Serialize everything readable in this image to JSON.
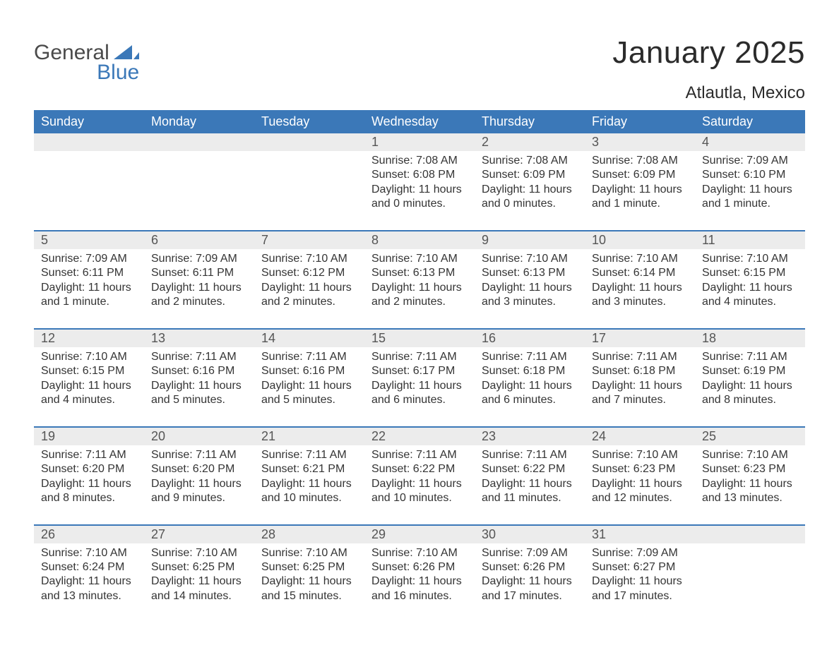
{
  "brand": {
    "word1": "General",
    "word2": "Blue",
    "word1_color": "#4a4a4a",
    "word2_color": "#3b78b8",
    "sail_color": "#3b78b8"
  },
  "title": "January 2025",
  "location": "Atlautla, Mexico",
  "colors": {
    "header_bg": "#3b78b8",
    "header_text": "#ffffff",
    "band_bg": "#ececec",
    "text": "#343434",
    "daynum_text": "#555555",
    "border": "#3b78b8",
    "page_bg": "#ffffff"
  },
  "typography": {
    "title_fontsize_pt": 33,
    "location_fontsize_pt": 18,
    "dayhead_fontsize_pt": 13.5,
    "body_fontsize_pt": 12
  },
  "day_headers": [
    "Sunday",
    "Monday",
    "Tuesday",
    "Wednesday",
    "Thursday",
    "Friday",
    "Saturday"
  ],
  "weeks": [
    [
      null,
      null,
      null,
      {
        "n": "1",
        "sunrise": "Sunrise: 7:08 AM",
        "sunset": "Sunset: 6:08 PM",
        "daylight": "Daylight: 11 hours and 0 minutes."
      },
      {
        "n": "2",
        "sunrise": "Sunrise: 7:08 AM",
        "sunset": "Sunset: 6:09 PM",
        "daylight": "Daylight: 11 hours and 0 minutes."
      },
      {
        "n": "3",
        "sunrise": "Sunrise: 7:08 AM",
        "sunset": "Sunset: 6:09 PM",
        "daylight": "Daylight: 11 hours and 1 minute."
      },
      {
        "n": "4",
        "sunrise": "Sunrise: 7:09 AM",
        "sunset": "Sunset: 6:10 PM",
        "daylight": "Daylight: 11 hours and 1 minute."
      }
    ],
    [
      {
        "n": "5",
        "sunrise": "Sunrise: 7:09 AM",
        "sunset": "Sunset: 6:11 PM",
        "daylight": "Daylight: 11 hours and 1 minute."
      },
      {
        "n": "6",
        "sunrise": "Sunrise: 7:09 AM",
        "sunset": "Sunset: 6:11 PM",
        "daylight": "Daylight: 11 hours and 2 minutes."
      },
      {
        "n": "7",
        "sunrise": "Sunrise: 7:10 AM",
        "sunset": "Sunset: 6:12 PM",
        "daylight": "Daylight: 11 hours and 2 minutes."
      },
      {
        "n": "8",
        "sunrise": "Sunrise: 7:10 AM",
        "sunset": "Sunset: 6:13 PM",
        "daylight": "Daylight: 11 hours and 2 minutes."
      },
      {
        "n": "9",
        "sunrise": "Sunrise: 7:10 AM",
        "sunset": "Sunset: 6:13 PM",
        "daylight": "Daylight: 11 hours and 3 minutes."
      },
      {
        "n": "10",
        "sunrise": "Sunrise: 7:10 AM",
        "sunset": "Sunset: 6:14 PM",
        "daylight": "Daylight: 11 hours and 3 minutes."
      },
      {
        "n": "11",
        "sunrise": "Sunrise: 7:10 AM",
        "sunset": "Sunset: 6:15 PM",
        "daylight": "Daylight: 11 hours and 4 minutes."
      }
    ],
    [
      {
        "n": "12",
        "sunrise": "Sunrise: 7:10 AM",
        "sunset": "Sunset: 6:15 PM",
        "daylight": "Daylight: 11 hours and 4 minutes."
      },
      {
        "n": "13",
        "sunrise": "Sunrise: 7:11 AM",
        "sunset": "Sunset: 6:16 PM",
        "daylight": "Daylight: 11 hours and 5 minutes."
      },
      {
        "n": "14",
        "sunrise": "Sunrise: 7:11 AM",
        "sunset": "Sunset: 6:16 PM",
        "daylight": "Daylight: 11 hours and 5 minutes."
      },
      {
        "n": "15",
        "sunrise": "Sunrise: 7:11 AM",
        "sunset": "Sunset: 6:17 PM",
        "daylight": "Daylight: 11 hours and 6 minutes."
      },
      {
        "n": "16",
        "sunrise": "Sunrise: 7:11 AM",
        "sunset": "Sunset: 6:18 PM",
        "daylight": "Daylight: 11 hours and 6 minutes."
      },
      {
        "n": "17",
        "sunrise": "Sunrise: 7:11 AM",
        "sunset": "Sunset: 6:18 PM",
        "daylight": "Daylight: 11 hours and 7 minutes."
      },
      {
        "n": "18",
        "sunrise": "Sunrise: 7:11 AM",
        "sunset": "Sunset: 6:19 PM",
        "daylight": "Daylight: 11 hours and 8 minutes."
      }
    ],
    [
      {
        "n": "19",
        "sunrise": "Sunrise: 7:11 AM",
        "sunset": "Sunset: 6:20 PM",
        "daylight": "Daylight: 11 hours and 8 minutes."
      },
      {
        "n": "20",
        "sunrise": "Sunrise: 7:11 AM",
        "sunset": "Sunset: 6:20 PM",
        "daylight": "Daylight: 11 hours and 9 minutes."
      },
      {
        "n": "21",
        "sunrise": "Sunrise: 7:11 AM",
        "sunset": "Sunset: 6:21 PM",
        "daylight": "Daylight: 11 hours and 10 minutes."
      },
      {
        "n": "22",
        "sunrise": "Sunrise: 7:11 AM",
        "sunset": "Sunset: 6:22 PM",
        "daylight": "Daylight: 11 hours and 10 minutes."
      },
      {
        "n": "23",
        "sunrise": "Sunrise: 7:11 AM",
        "sunset": "Sunset: 6:22 PM",
        "daylight": "Daylight: 11 hours and 11 minutes."
      },
      {
        "n": "24",
        "sunrise": "Sunrise: 7:10 AM",
        "sunset": "Sunset: 6:23 PM",
        "daylight": "Daylight: 11 hours and 12 minutes."
      },
      {
        "n": "25",
        "sunrise": "Sunrise: 7:10 AM",
        "sunset": "Sunset: 6:23 PM",
        "daylight": "Daylight: 11 hours and 13 minutes."
      }
    ],
    [
      {
        "n": "26",
        "sunrise": "Sunrise: 7:10 AM",
        "sunset": "Sunset: 6:24 PM",
        "daylight": "Daylight: 11 hours and 13 minutes."
      },
      {
        "n": "27",
        "sunrise": "Sunrise: 7:10 AM",
        "sunset": "Sunset: 6:25 PM",
        "daylight": "Daylight: 11 hours and 14 minutes."
      },
      {
        "n": "28",
        "sunrise": "Sunrise: 7:10 AM",
        "sunset": "Sunset: 6:25 PM",
        "daylight": "Daylight: 11 hours and 15 minutes."
      },
      {
        "n": "29",
        "sunrise": "Sunrise: 7:10 AM",
        "sunset": "Sunset: 6:26 PM",
        "daylight": "Daylight: 11 hours and 16 minutes."
      },
      {
        "n": "30",
        "sunrise": "Sunrise: 7:09 AM",
        "sunset": "Sunset: 6:26 PM",
        "daylight": "Daylight: 11 hours and 17 minutes."
      },
      {
        "n": "31",
        "sunrise": "Sunrise: 7:09 AM",
        "sunset": "Sunset: 6:27 PM",
        "daylight": "Daylight: 11 hours and 17 minutes."
      },
      null
    ]
  ]
}
